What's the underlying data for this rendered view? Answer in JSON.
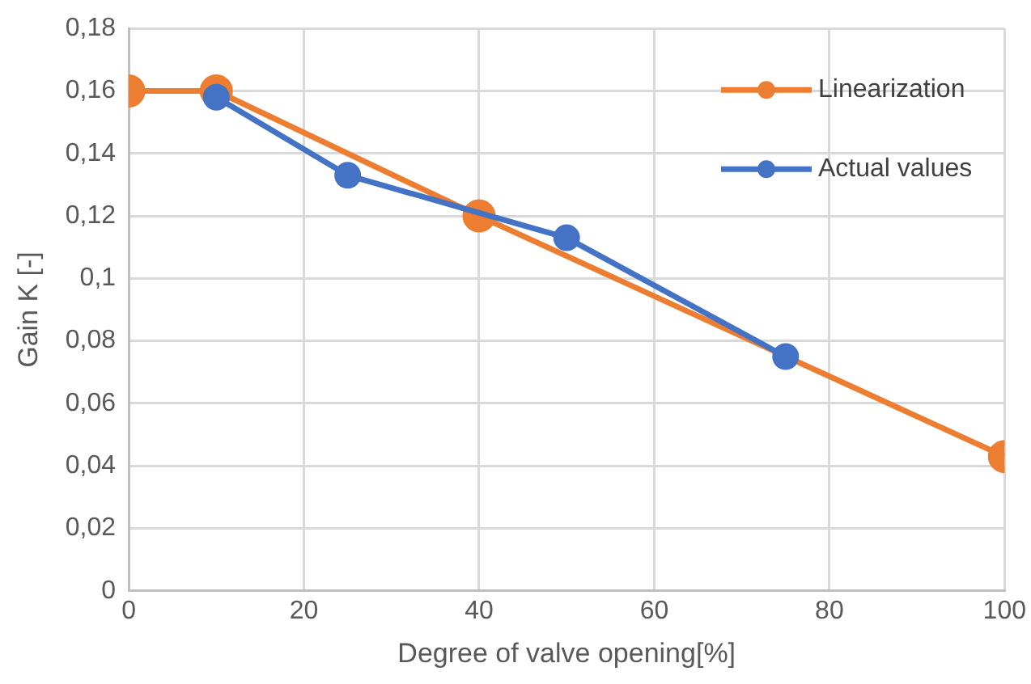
{
  "chart_data": {
    "type": "line",
    "xlabel": "Degree of valve opening[%]",
    "ylabel": "Gain K [-]",
    "series": [
      {
        "name": "Linearization",
        "color": "#ed7d31",
        "x": [
          0,
          10,
          40,
          100
        ],
        "values": [
          0.16,
          0.16,
          0.12,
          0.043
        ]
      },
      {
        "name": "Actual values",
        "color": "#4472c4",
        "x": [
          10,
          25,
          50,
          75
        ],
        "values": [
          0.158,
          0.133,
          0.113,
          0.075
        ]
      }
    ],
    "xlim": [
      0,
      100
    ],
    "xticks": [
      0,
      20,
      40,
      60,
      80,
      100
    ],
    "ylim": [
      0,
      0.18
    ],
    "yticks": [
      0,
      {
        "value": 0.02,
        "label": "0,02"
      },
      {
        "value": 0.04,
        "label": "0,04"
      },
      {
        "value": 0.06,
        "label": "0,06"
      },
      {
        "value": 0.08,
        "label": "0,08"
      },
      {
        "value": 0.1,
        "label": "0,1"
      },
      {
        "value": 0.12,
        "label": "0,12"
      },
      {
        "value": 0.14,
        "label": "0,14"
      },
      {
        "value": 0.16,
        "label": "0,16"
      },
      {
        "value": 0.18,
        "label": "0,18"
      }
    ],
    "grid": true,
    "legend": "top right",
    "marker": "circle",
    "line_style": "solid"
  }
}
